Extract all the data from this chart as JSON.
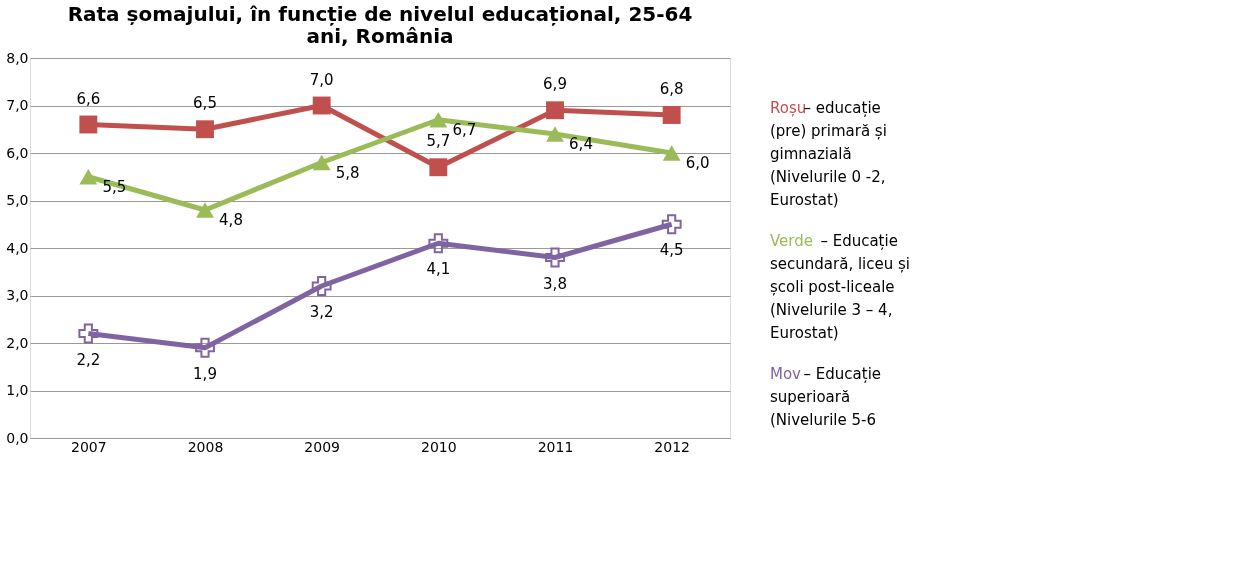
{
  "chart_data": {
    "type": "line",
    "title": "Rata șomajului, în funcție de nivelul educațional, 25-64\nani, România",
    "categories": [
      "2007",
      "2008",
      "2009",
      "2010",
      "2011",
      "2012"
    ],
    "series": [
      {
        "color": "#c0504d",
        "values": [
          6.6,
          6.5,
          7.0,
          5.7,
          6.9,
          6.8
        ],
        "marker": "square",
        "value_labels": [
          "6,6",
          "6,5",
          "7,0",
          "5,7",
          "6,9",
          "6,8"
        ]
      },
      {
        "color": "#9bbb59",
        "values": [
          5.5,
          4.8,
          5.8,
          6.7,
          6.4,
          6.0
        ],
        "marker": "triangle",
        "value_labels": [
          "5,5",
          "4,8",
          "5,8",
          "6,7",
          "6,4",
          "6,0"
        ]
      },
      {
        "color": "#8064a2",
        "values": [
          2.2,
          1.9,
          3.2,
          4.1,
          3.8,
          4.5
        ],
        "marker": "cross",
        "value_labels": [
          "2,2",
          "1,9",
          "3,2",
          "4,1",
          "3,8",
          "4,5"
        ]
      }
    ],
    "ylim": [
      0,
      8
    ],
    "yticks": [
      {
        "value": 0,
        "label": "0,0"
      },
      {
        "value": 1,
        "label": "1,0"
      },
      {
        "value": 2,
        "label": "2,0"
      },
      {
        "value": 3,
        "label": "3,0"
      },
      {
        "value": 4,
        "label": "4,0"
      },
      {
        "value": 5,
        "label": "5,0"
      },
      {
        "value": 6,
        "label": "6,0"
      },
      {
        "value": 7,
        "label": "7,0"
      },
      {
        "value": 8,
        "label": "8,0"
      }
    ],
    "grid": "y",
    "legend": false,
    "line_style": "solid",
    "annotations": [
      "Roșu– educație\n(pre) primară și\ngimnazială\n(Nivelurile 0 -2,\nEurostat)",
      "Verde – Educație\nsecundară, liceu și\nșcoli post-liceale\n(Nivelurile 3 – 4,\nEurostat)",
      "Mov – Educație\nsuperioară\n(Nivelurile 5-6"
    ]
  }
}
